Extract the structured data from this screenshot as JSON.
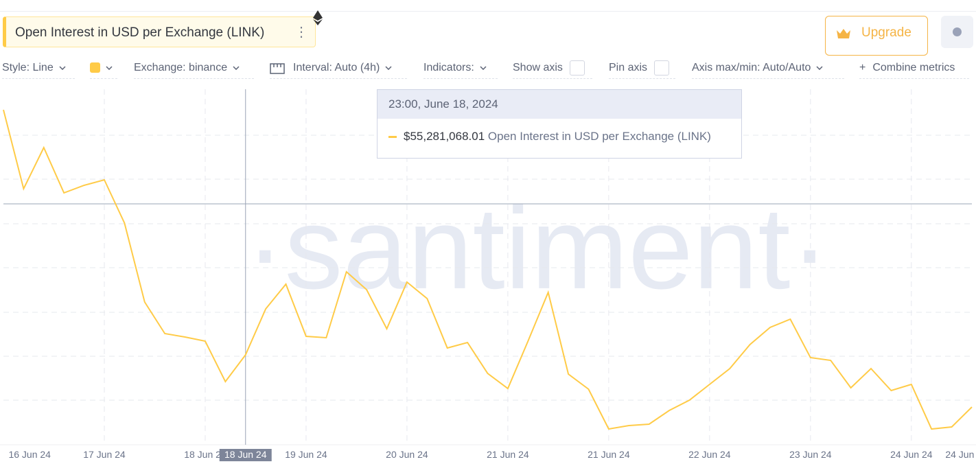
{
  "header": {
    "metric_title": "Open Interest in USD per Exchange (LINK)",
    "upgrade": "Upgrade"
  },
  "toolbar": {
    "style": "Style: Line",
    "exchange": "Exchange: binance",
    "interval": "Interval: Auto (4h)",
    "indicators": "Indicators:",
    "show_axis": "Show axis",
    "pin_axis": "Pin axis",
    "axis_max_min": "Axis max/min: Auto/Auto",
    "combine": "Combine metrics"
  },
  "watermark": "·santiment·",
  "tooltip": {
    "date": "23:00, June 18, 2024",
    "value": "$55,281,068.01",
    "metric": "Open Interest in USD per Exchange (LINK)"
  },
  "chart_data": {
    "type": "line",
    "series": [
      {
        "name": "Open Interest in USD per Exchange (LINK)",
        "color": "#ffcb47",
        "values": [
          62420000,
          60120000,
          61320000,
          60000000,
          60220000,
          60380000,
          59120000,
          56820000,
          55900000,
          55800000,
          55680000,
          54500000,
          55281068.01,
          56620000,
          57340000,
          55820000,
          55780000,
          57700000,
          57180000,
          56040000,
          57400000,
          56920000,
          55480000,
          55640000,
          54740000,
          54300000,
          55680000,
          57100000,
          54720000,
          54280000,
          53120000,
          53220000,
          53260000,
          53660000,
          53960000,
          54420000,
          54880000,
          55580000,
          56080000,
          56320000,
          55200000,
          55120000,
          54320000,
          54880000,
          54240000,
          54420000,
          53120000,
          53180000,
          53760000
        ]
      }
    ],
    "xlim": [
      0,
      48
    ],
    "xticks": [
      {
        "value": 5,
        "label": "17 Jun 24"
      },
      {
        "value": 10,
        "label": "18 Jun 24"
      },
      {
        "value": 15,
        "label": "19 Jun 24"
      },
      {
        "value": 20,
        "label": "20 Jun 24"
      },
      {
        "value": 25,
        "label": "21 Jun 24"
      },
      {
        "value": 30,
        "label": "21 Jun 24"
      },
      {
        "value": 35,
        "label": "22 Jun 24"
      },
      {
        "value": 40,
        "label": "23 Jun 24"
      },
      {
        "value": 45,
        "label": "24 Jun 24"
      }
    ],
    "x_edge_labels": [
      {
        "value": 1.3,
        "label": "16 Jun 24"
      },
      {
        "value": 47.4,
        "label": "24 Jun"
      }
    ],
    "ylim": [
      52660000,
      63020000
    ],
    "yticks": [
      53960000,
      55240000,
      56520000,
      57820000,
      59100000,
      60400000,
      61680000
    ],
    "grid": true,
    "crosshair": {
      "x": {
        "value": 12,
        "label": "18 Jun 24"
      },
      "y": 59680000
    }
  }
}
